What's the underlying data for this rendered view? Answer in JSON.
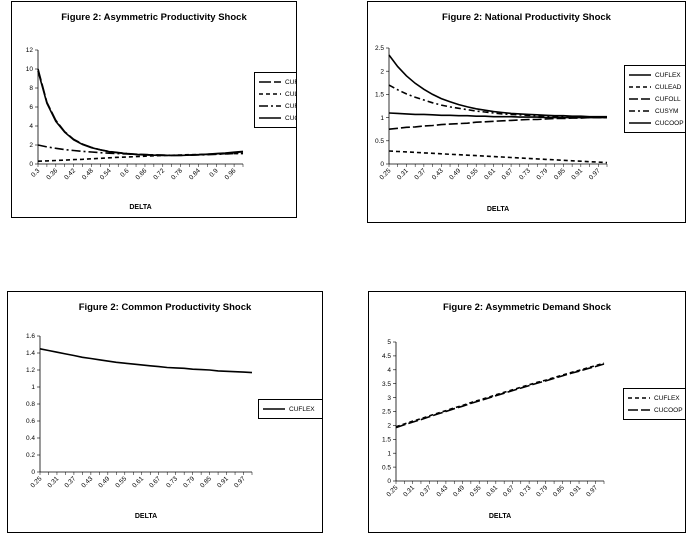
{
  "chart_data": [
    {
      "type": "line",
      "title": "Figure 2: Asymmetric Productivity Shock",
      "xlabel": "DELTA",
      "ylim": [
        0,
        12
      ],
      "yticks": [
        0,
        2,
        4,
        6,
        8,
        10,
        12
      ],
      "x": [
        0.3,
        0.33,
        0.36,
        0.39,
        0.42,
        0.45,
        0.48,
        0.51,
        0.54,
        0.57,
        0.6,
        0.63,
        0.66,
        0.69,
        0.72,
        0.75,
        0.78,
        0.81,
        0.84,
        0.87,
        0.9,
        0.93,
        0.96,
        0.99
      ],
      "xtick_labels": [
        "0.3",
        "0.36",
        "0.42",
        "0.48",
        "0.54",
        "0.6",
        "0.66",
        "0.72",
        "0.78",
        "0.84",
        "0.9",
        "0.96"
      ],
      "legend": "right",
      "series": [
        {
          "name": "CUFLEX",
          "dash": "12 3",
          "values": [
            10.0,
            6.5,
            4.6,
            3.4,
            2.6,
            2.1,
            1.75,
            1.5,
            1.32,
            1.2,
            1.1,
            1.03,
            0.98,
            0.95,
            0.93,
            0.92,
            0.93,
            0.95,
            0.98,
            1.02,
            1.07,
            1.13,
            1.2,
            1.28
          ]
        },
        {
          "name": "CULEAD",
          "dash": "4 3",
          "values": [
            0.3,
            0.33,
            0.37,
            0.41,
            0.46,
            0.5,
            0.55,
            0.6,
            0.65,
            0.7,
            0.74,
            0.78,
            0.82,
            0.86,
            0.89,
            0.92,
            0.95,
            0.98,
            1.0,
            1.02,
            1.05,
            1.07,
            1.09,
            1.1
          ]
        },
        {
          "name": "CUFOLL",
          "dash": "9 3 2 3",
          "values": [
            2.0,
            1.8,
            1.65,
            1.52,
            1.42,
            1.33,
            1.26,
            1.19,
            1.14,
            1.09,
            1.05,
            1.02,
            0.99,
            0.96,
            0.94,
            0.92,
            0.92,
            0.93,
            0.95,
            0.98,
            1.02,
            1.06,
            1.1,
            1.15
          ]
        },
        {
          "name": "CUCOOP",
          "dash": "",
          "values": [
            9.8,
            6.4,
            4.5,
            3.35,
            2.55,
            2.05,
            1.72,
            1.48,
            1.3,
            1.18,
            1.08,
            1.01,
            0.96,
            0.93,
            0.91,
            0.9,
            0.91,
            0.94,
            0.98,
            1.03,
            1.09,
            1.16,
            1.24,
            1.33
          ]
        }
      ]
    },
    {
      "type": "line",
      "title": "Figure 2: National Productivity Shock",
      "xlabel": "DELTA",
      "ylim": [
        0,
        2.5
      ],
      "yticks": [
        0,
        0.5,
        1,
        1.5,
        2,
        2.5
      ],
      "x": [
        0.25,
        0.28,
        0.31,
        0.34,
        0.37,
        0.4,
        0.43,
        0.46,
        0.49,
        0.52,
        0.55,
        0.58,
        0.61,
        0.64,
        0.67,
        0.7,
        0.73,
        0.76,
        0.79,
        0.82,
        0.85,
        0.88,
        0.91,
        0.94,
        0.97,
        1.0
      ],
      "xtick_labels": [
        "0.25",
        "0.31",
        "0.37",
        "0.43",
        "0.49",
        "0.55",
        "0.61",
        "0.67",
        "0.73",
        "0.79",
        "0.85",
        "0.91",
        "0.97"
      ],
      "legend": "right",
      "series": [
        {
          "name": "CUFLEX",
          "dash": "",
          "values": [
            2.35,
            2.1,
            1.9,
            1.74,
            1.61,
            1.5,
            1.41,
            1.34,
            1.28,
            1.23,
            1.19,
            1.16,
            1.13,
            1.11,
            1.09,
            1.08,
            1.07,
            1.06,
            1.05,
            1.04,
            1.04,
            1.03,
            1.03,
            1.02,
            1.02,
            1.02
          ]
        },
        {
          "name": "CULEAD",
          "dash": "4 3",
          "values": [
            0.28,
            0.27,
            0.26,
            0.25,
            0.24,
            0.23,
            0.22,
            0.21,
            0.2,
            0.19,
            0.18,
            0.17,
            0.16,
            0.15,
            0.14,
            0.13,
            0.12,
            0.11,
            0.1,
            0.09,
            0.08,
            0.07,
            0.06,
            0.05,
            0.04,
            0.03
          ]
        },
        {
          "name": "CUFOLL",
          "dash": "9 3",
          "values": [
            0.75,
            0.77,
            0.79,
            0.8,
            0.82,
            0.83,
            0.85,
            0.86,
            0.87,
            0.88,
            0.9,
            0.91,
            0.92,
            0.93,
            0.94,
            0.95,
            0.96,
            0.96,
            0.97,
            0.98,
            0.98,
            0.99,
            0.99,
            1.0,
            1.0,
            1.0
          ]
        },
        {
          "name": "CUSYM",
          "dash": "6 3 2 3",
          "values": [
            1.7,
            1.6,
            1.51,
            1.44,
            1.38,
            1.32,
            1.27,
            1.23,
            1.2,
            1.17,
            1.14,
            1.12,
            1.1,
            1.08,
            1.07,
            1.06,
            1.05,
            1.04,
            1.03,
            1.03,
            1.02,
            1.02,
            1.01,
            1.01,
            1.0,
            1.0
          ]
        },
        {
          "name": "CUCOOP",
          "dash": "",
          "values": [
            1.1,
            1.09,
            1.08,
            1.07,
            1.07,
            1.06,
            1.05,
            1.05,
            1.04,
            1.04,
            1.03,
            1.03,
            1.02,
            1.02,
            1.02,
            1.01,
            1.01,
            1.01,
            1.0,
            1.0,
            1.0,
            1.0,
            1.0,
            1.0,
            1.0,
            1.0
          ]
        }
      ]
    },
    {
      "type": "line",
      "title": "Figure 2: Common Productivity Shock",
      "xlabel": "DELTA",
      "ylim": [
        0,
        1.6
      ],
      "yticks": [
        0,
        0.2,
        0.4,
        0.6,
        0.8,
        1,
        1.2,
        1.4,
        1.6
      ],
      "x": [
        0.25,
        0.28,
        0.31,
        0.34,
        0.37,
        0.4,
        0.43,
        0.46,
        0.49,
        0.52,
        0.55,
        0.58,
        0.61,
        0.64,
        0.67,
        0.7,
        0.73,
        0.76,
        0.79,
        0.82,
        0.85,
        0.88,
        0.91,
        0.94,
        0.97,
        1.0
      ],
      "xtick_labels": [
        "0.25",
        "0.31",
        "0.37",
        "0.43",
        "0.49",
        "0.55",
        "0.61",
        "0.67",
        "0.73",
        "0.79",
        "0.85",
        "0.91",
        "0.97"
      ],
      "legend": "right",
      "series": [
        {
          "name": "CUFLEX",
          "dash": "",
          "values": [
            1.45,
            1.43,
            1.41,
            1.39,
            1.37,
            1.35,
            1.335,
            1.32,
            1.305,
            1.29,
            1.28,
            1.27,
            1.26,
            1.25,
            1.24,
            1.23,
            1.225,
            1.22,
            1.21,
            1.205,
            1.2,
            1.19,
            1.185,
            1.18,
            1.175,
            1.17
          ]
        }
      ]
    },
    {
      "type": "line",
      "title": "Figure 2: Asymmetric Demand Shock",
      "xlabel": "DELTA",
      "ylim": [
        0,
        5
      ],
      "yticks": [
        0,
        0.5,
        1,
        1.5,
        2,
        2.5,
        3,
        3.5,
        4,
        4.5,
        5
      ],
      "x": [
        0.25,
        0.28,
        0.31,
        0.34,
        0.37,
        0.4,
        0.43,
        0.46,
        0.49,
        0.52,
        0.55,
        0.58,
        0.61,
        0.64,
        0.67,
        0.7,
        0.73,
        0.76,
        0.79,
        0.82,
        0.85,
        0.88,
        0.91,
        0.94,
        0.97,
        1.0
      ],
      "xtick_labels": [
        "0.25",
        "0.31",
        "0.37",
        "0.43",
        "0.49",
        "0.55",
        "0.61",
        "0.67",
        "0.73",
        "0.79",
        "0.85",
        "0.91",
        "0.97"
      ],
      "legend": "right",
      "series": [
        {
          "name": "CUFLEX",
          "dash": "4 3",
          "values": [
            1.95,
            2.05,
            2.15,
            2.24,
            2.34,
            2.44,
            2.53,
            2.63,
            2.72,
            2.82,
            2.91,
            3.0,
            3.1,
            3.19,
            3.28,
            3.37,
            3.46,
            3.55,
            3.63,
            3.72,
            3.81,
            3.9,
            3.98,
            4.07,
            4.15,
            4.24
          ]
        },
        {
          "name": "CUCOOP",
          "dash": "10 3",
          "values": [
            1.92,
            2.02,
            2.12,
            2.21,
            2.31,
            2.41,
            2.5,
            2.6,
            2.69,
            2.79,
            2.88,
            2.97,
            3.07,
            3.16,
            3.25,
            3.34,
            3.43,
            3.52,
            3.6,
            3.69,
            3.78,
            3.87,
            3.95,
            4.04,
            4.12,
            4.21
          ]
        }
      ]
    }
  ]
}
